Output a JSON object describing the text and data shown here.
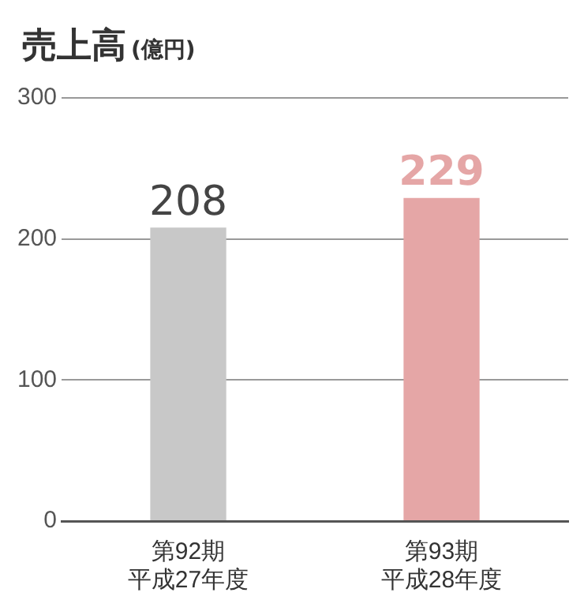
{
  "chart_data": {
    "type": "bar",
    "title": "売上高",
    "subtitle": "(億円)",
    "categories": [
      "第92期平成27年度",
      "第93期平成28年度"
    ],
    "values": [
      208,
      229
    ],
    "colors": [
      "#c8c8c8",
      "#e5a6a6"
    ],
    "ylim": [
      0,
      300
    ],
    "yticks": [
      0,
      100,
      200,
      300
    ],
    "grid": "y",
    "data_labels": true,
    "legend": false
  }
}
